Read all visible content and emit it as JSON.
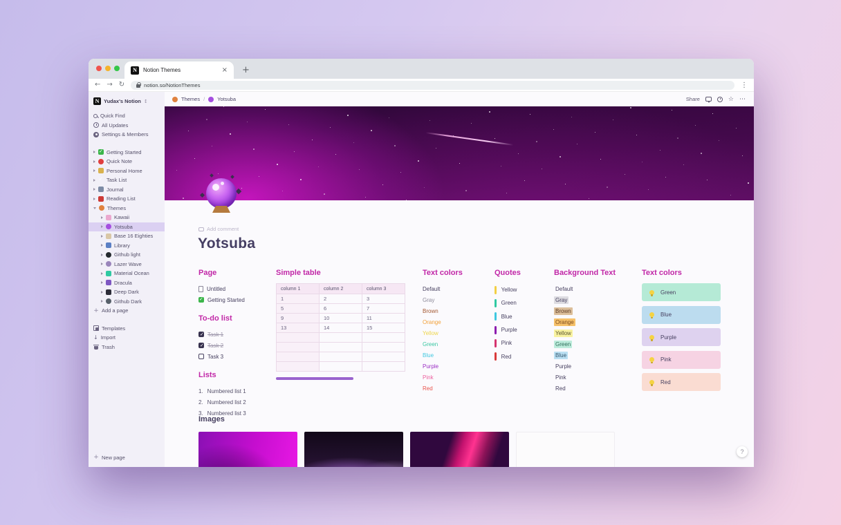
{
  "theme": {
    "accent_heading": "#c127a7",
    "divider_color": "#9a63ce",
    "selection_bg": "#dbd0f2",
    "title_color": "#453e63"
  },
  "icons": {
    "back": "←",
    "forward": "→",
    "reload": "↻",
    "menu_dots": "⋮",
    "star": "☆",
    "ellipsis": "⋯",
    "plus": "+",
    "close": "×",
    "swap": "↕",
    "import_arrow": "↓"
  },
  "browser": {
    "tab_title": "Notion Themes",
    "url": "notion.so/NotionThemes",
    "favicon_letter": "N"
  },
  "topbar": {
    "breadcrumb_root": "Themes",
    "breadcrumb_sep": "/",
    "breadcrumb_current": "Yotsuba",
    "share_label": "Share"
  },
  "sidebar": {
    "workspace_name": "Yudax's Notion",
    "menu": {
      "quick_find": "Quick Find",
      "all_updates": "All Updates",
      "settings": "Settings & Members"
    },
    "pages": [
      {
        "label": "Getting Started",
        "icon": "check-badge-icon",
        "color": "#3bb54a"
      },
      {
        "label": "Quick Note",
        "icon": "pin-icon",
        "color": "#e03e3e"
      },
      {
        "label": "Personal Home",
        "icon": "home-icon",
        "color": "#d9b24e"
      },
      {
        "label": "Task List",
        "icon": "checkmark-icon",
        "color": "#3d3852"
      },
      {
        "label": "Journal",
        "icon": "notebook-icon",
        "color": "#7d8ba5"
      },
      {
        "label": "Reading List",
        "icon": "book-icon",
        "color": "#cc3a36"
      },
      {
        "label": "Themes",
        "icon": "palette-icon",
        "color": "#e0823f"
      }
    ],
    "themes_children": [
      {
        "label": "Kawaii",
        "color": "#eba9cf"
      },
      {
        "label": "Yotsuba",
        "color": "#a54fe0"
      },
      {
        "label": "Base 16 Eighties",
        "color": "#d9c7a7"
      },
      {
        "label": "Library",
        "color": "#5b7fc4"
      },
      {
        "label": "Github light",
        "color": "#24292e"
      },
      {
        "label": "Lazer Wave",
        "color": "#9a85bb"
      },
      {
        "label": "Material Ocean",
        "color": "#2fc9a2"
      },
      {
        "label": "Dracula",
        "color": "#7e57c2"
      },
      {
        "label": "Deep Dark",
        "color": "#2c2c38"
      },
      {
        "label": "Github Dark",
        "color": "#57606a"
      }
    ],
    "add_a_page": "Add a page",
    "templates": "Templates",
    "import": "Import",
    "trash": "Trash",
    "new_page": "New page"
  },
  "page": {
    "title": "Yotsuba",
    "add_comment": "Add comment",
    "help_label": "?"
  },
  "sections": {
    "page_links": {
      "heading": "Page",
      "items": [
        {
          "label": "Untitled"
        },
        {
          "label": "Getting Started"
        }
      ]
    },
    "todo": {
      "heading": "To-do list",
      "items": [
        {
          "label": "Task 1",
          "checked": true
        },
        {
          "label": "Task 2",
          "checked": true
        },
        {
          "label": "Task 3",
          "checked": false
        }
      ]
    },
    "lists": {
      "heading": "Lists",
      "items": [
        {
          "num": "1.",
          "label": "Numbered list 1"
        },
        {
          "num": "2.",
          "label": "Numbered list 2"
        },
        {
          "num": "3.",
          "label": "Numbered list 3"
        }
      ]
    },
    "simple_table": {
      "heading": "Simple table",
      "headers": [
        "column 1",
        "column 2",
        "column 3"
      ],
      "rows": [
        [
          "1",
          "2",
          "3"
        ],
        [
          "5",
          "6",
          "7"
        ],
        [
          "9",
          "10",
          "11"
        ],
        [
          "13",
          "14",
          "15"
        ],
        [
          "",
          "",
          ""
        ],
        [
          "",
          "",
          ""
        ],
        [
          "",
          "",
          ""
        ],
        [
          "",
          "",
          ""
        ]
      ]
    },
    "text_colors": {
      "heading": "Text colors",
      "items": [
        {
          "label": "Default",
          "color": "#474060"
        },
        {
          "label": "Gray",
          "color": "#8d8a99"
        },
        {
          "label": "Brown",
          "color": "#a2562f"
        },
        {
          "label": "Orange",
          "color": "#f2a038"
        },
        {
          "label": "Yellow",
          "color": "#eed64d"
        },
        {
          "label": "Green",
          "color": "#39c7a2"
        },
        {
          "label": "Blue",
          "color": "#41c8e0"
        },
        {
          "label": "Purple",
          "color": "#9b2fc4"
        },
        {
          "label": "Pink",
          "color": "#ec5f9e"
        },
        {
          "label": "Red",
          "color": "#e9544d"
        }
      ]
    },
    "quotes": {
      "heading": "Quotes",
      "items": [
        {
          "label": "Yellow",
          "bar_color": "#f2cf45"
        },
        {
          "label": "Green",
          "bar_color": "#2fc9a2"
        },
        {
          "label": "Blue",
          "bar_color": "#3fc8e0"
        },
        {
          "label": "Purple",
          "bar_color": "#8c1daf"
        },
        {
          "label": "Pink",
          "bar_color": "#d5336f"
        },
        {
          "label": "Red",
          "bar_color": "#d93a3a"
        }
      ]
    },
    "background_text": {
      "heading": "Background Text",
      "items": [
        {
          "label": "Default",
          "bg": "transparent",
          "color": "#474060"
        },
        {
          "label": "Gray",
          "bg": "#dddce1",
          "color": "#474060"
        },
        {
          "label": "Brown",
          "bg": "#dcbf9b",
          "color": "#5d3b25"
        },
        {
          "label": "Orange",
          "bg": "#f6c16a",
          "color": "#7a4a20"
        },
        {
          "label": "Yellow",
          "bg": "#f8f2a0",
          "color": "#5c5530"
        },
        {
          "label": "Green",
          "bg": "#bdecdc",
          "color": "#2f6e5a"
        },
        {
          "label": "Blue",
          "bg": "#badff2",
          "color": "#35576e"
        },
        {
          "label": "Purple",
          "bg": "transparent",
          "color": "#474060"
        },
        {
          "label": "Pink",
          "bg": "transparent",
          "color": "#474060"
        },
        {
          "label": "Red",
          "bg": "transparent",
          "color": "#474060"
        }
      ]
    },
    "callouts": {
      "heading": "Text colors",
      "items": [
        {
          "label": "Green",
          "bg": "#b5ead6"
        },
        {
          "label": "Blue",
          "bg": "#bcdcef"
        },
        {
          "label": "Purple",
          "bg": "#ded2ef"
        },
        {
          "label": "Pink",
          "bg": "#f6d3e3"
        },
        {
          "label": "Red",
          "bg": "#fadcd2"
        }
      ]
    },
    "images": {
      "heading": "Images"
    }
  }
}
